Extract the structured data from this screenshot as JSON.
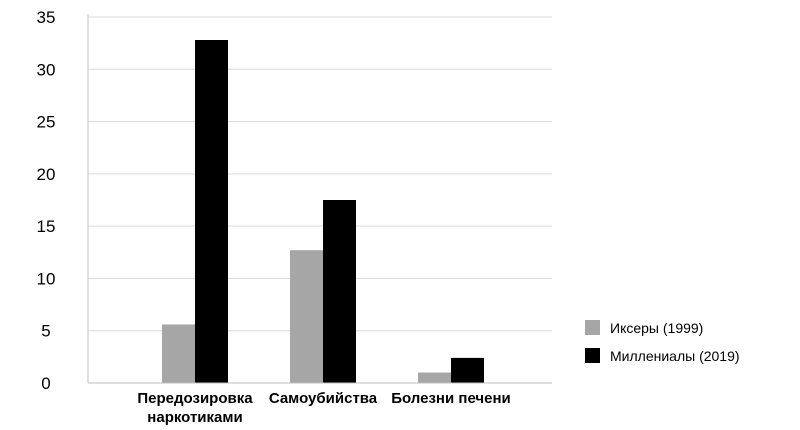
{
  "chart_data": {
    "type": "bar",
    "categories": [
      [
        "Передозировка",
        "наркотиками"
      ],
      [
        "Самоубийства"
      ],
      [
        "Болезни печени"
      ]
    ],
    "series": [
      {
        "name": "Иксеры (1999)",
        "color": "#a6a6a6",
        "values": [
          5.6,
          12.7,
          1.0
        ]
      },
      {
        "name": "Миллениалы (2019)",
        "color": "#000000",
        "values": [
          32.8,
          17.5,
          2.4
        ]
      }
    ],
    "ylim": [
      0,
      35
    ],
    "yticks": [
      0,
      5,
      10,
      15,
      20,
      25,
      30,
      35
    ],
    "grid": true,
    "legend_position": "right"
  }
}
